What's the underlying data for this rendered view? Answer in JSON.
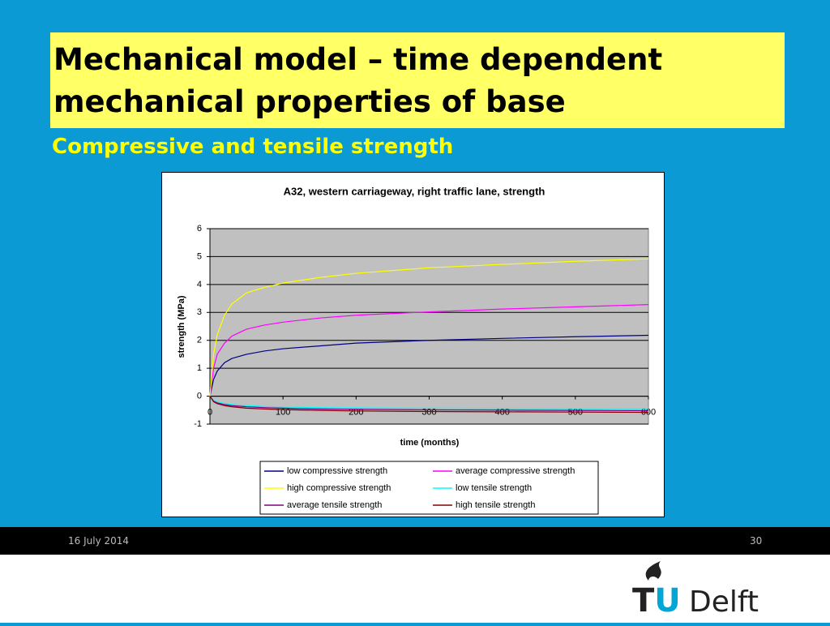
{
  "slide": {
    "title": "Mechanical model – time dependent mechanical properties of base",
    "subtitle": "Compressive and tensile strength",
    "date": "16 July 2014",
    "page": "30",
    "logo": [
      "TU",
      "Delft"
    ]
  },
  "chart_data": {
    "type": "line",
    "title": "A32, western carriageway, right traffic lane, strength",
    "x_label": "time (months)",
    "y_label": "strength (MPa)",
    "x": [
      0,
      5,
      10,
      20,
      30,
      50,
      75,
      100,
      150,
      200,
      300,
      400,
      500,
      600
    ],
    "series": [
      {
        "name": "low compressive strength",
        "color": "#000080",
        "values": [
          0,
          0.6,
          0.9,
          1.2,
          1.35,
          1.5,
          1.62,
          1.7,
          1.8,
          1.9,
          2.0,
          2.07,
          2.13,
          2.18
        ]
      },
      {
        "name": "average compressive strength",
        "color": "#ff00ff",
        "values": [
          0,
          1.0,
          1.5,
          1.9,
          2.15,
          2.4,
          2.55,
          2.65,
          2.8,
          2.9,
          3.02,
          3.12,
          3.2,
          3.28
        ]
      },
      {
        "name": "high compressive strength",
        "color": "#ffff00",
        "values": [
          0,
          1.5,
          2.2,
          2.9,
          3.3,
          3.7,
          3.9,
          4.05,
          4.25,
          4.4,
          4.6,
          4.72,
          4.83,
          4.92
        ]
      },
      {
        "name": "low tensile strength",
        "color": "#00ffff",
        "values": [
          0,
          -0.15,
          -0.2,
          -0.26,
          -0.3,
          -0.34,
          -0.37,
          -0.39,
          -0.41,
          -0.42,
          -0.43,
          -0.44,
          -0.45,
          -0.45
        ]
      },
      {
        "name": "average tensile strength",
        "color": "#800080",
        "values": [
          0,
          -0.18,
          -0.24,
          -0.3,
          -0.34,
          -0.38,
          -0.41,
          -0.43,
          -0.46,
          -0.47,
          -0.49,
          -0.5,
          -0.51,
          -0.52
        ]
      },
      {
        "name": "high tensile strength",
        "color": "#800000",
        "values": [
          0,
          -0.2,
          -0.27,
          -0.34,
          -0.38,
          -0.43,
          -0.46,
          -0.48,
          -0.51,
          -0.53,
          -0.55,
          -0.56,
          -0.57,
          -0.58
        ]
      }
    ],
    "xlim": [
      0,
      600
    ],
    "xticks": [
      0,
      100,
      200,
      300,
      400,
      500,
      600
    ],
    "ylim": [
      -1,
      6
    ],
    "yticks": [
      -1,
      0,
      1,
      2,
      3,
      4,
      5,
      6
    ],
    "grid": true,
    "plot_background": "#c0c0c0"
  }
}
